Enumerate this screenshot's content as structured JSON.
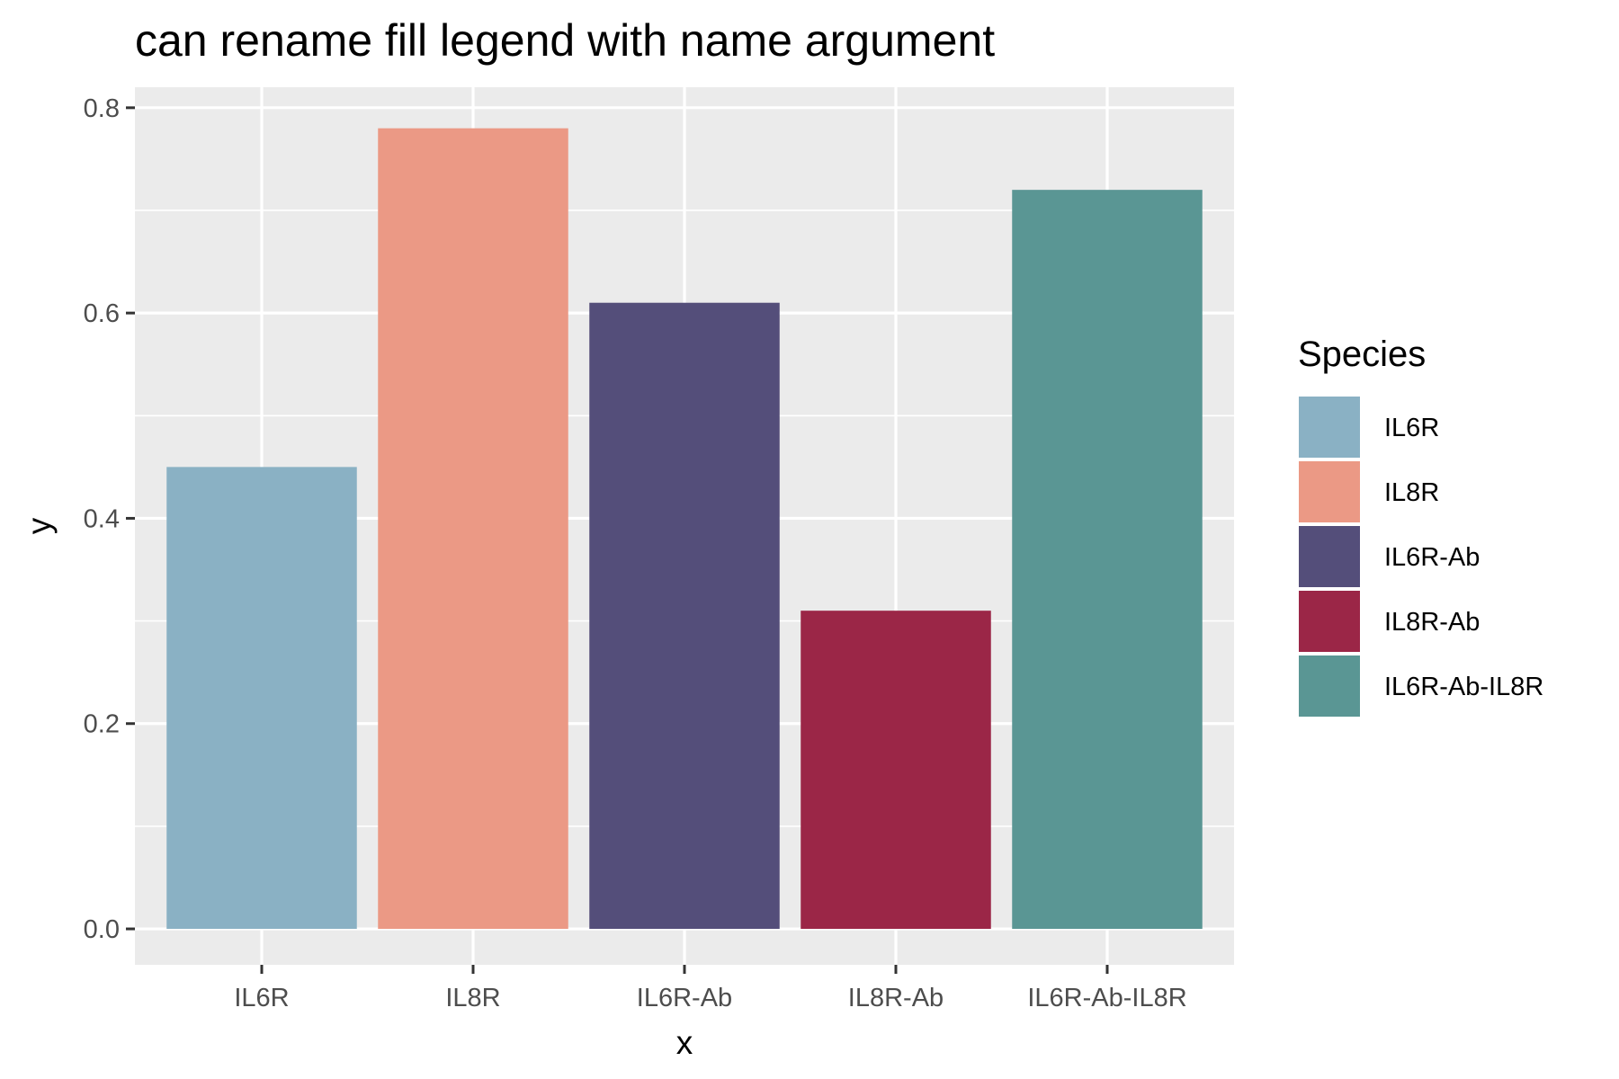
{
  "chart_data": {
    "type": "bar",
    "title": "can rename fill legend with name argument",
    "xlabel": "x",
    "ylabel": "y",
    "categories": [
      "IL6R",
      "IL8R",
      "IL6R-Ab",
      "IL8R-Ab",
      "IL6R-Ab-IL8R"
    ],
    "values": [
      0.45,
      0.78,
      0.61,
      0.31,
      0.72
    ],
    "colors": [
      "#8AB1C4",
      "#EB9985",
      "#544E7A",
      "#9B2647",
      "#5A9694"
    ],
    "ylim": [
      -0.035,
      0.82
    ],
    "yticks": [
      0.0,
      0.2,
      0.4,
      0.6,
      0.8
    ],
    "ytick_labels": [
      "0.0",
      "0.2",
      "0.4",
      "0.6",
      "0.8"
    ],
    "grid": true,
    "panel_background": "#EBEBEB",
    "legend": {
      "title": "Species",
      "position": "right",
      "entries": [
        "IL6R",
        "IL8R",
        "IL6R-Ab",
        "IL8R-Ab",
        "IL6R-Ab-IL8R"
      ]
    }
  }
}
